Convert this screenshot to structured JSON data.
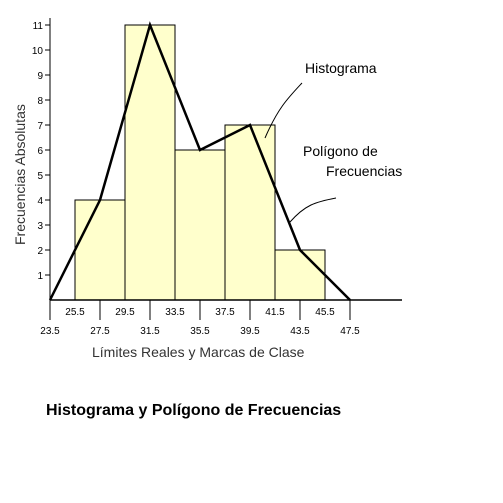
{
  "chart_data": {
    "type": "histogram",
    "title": "Histograma y Polígono de Frecuencias",
    "xlabel": "Límites Reales y Marcas de Clase",
    "ylabel": "Frecuencias Absolutas",
    "ylim": [
      0,
      11
    ],
    "yticks": [
      1,
      2,
      3,
      4,
      5,
      6,
      7,
      8,
      9,
      10,
      11
    ],
    "xlim": [
      23.5,
      47.5
    ],
    "bins": [
      {
        "from": 25.5,
        "to": 29.5,
        "mark": 27.5,
        "value": 4
      },
      {
        "from": 29.5,
        "to": 33.5,
        "mark": 31.5,
        "value": 11
      },
      {
        "from": 33.5,
        "to": 37.5,
        "mark": 35.5,
        "value": 6
      },
      {
        "from": 37.5,
        "to": 41.5,
        "mark": 39.5,
        "value": 7
      },
      {
        "from": 41.5,
        "to": 45.5,
        "mark": 43.5,
        "value": 2
      }
    ],
    "polygon": [
      {
        "x": 23.5,
        "y": 0
      },
      {
        "x": 27.5,
        "y": 4
      },
      {
        "x": 31.5,
        "y": 11
      },
      {
        "x": 35.5,
        "y": 6
      },
      {
        "x": 39.5,
        "y": 7
      },
      {
        "x": 43.5,
        "y": 2
      },
      {
        "x": 47.5,
        "y": 0
      }
    ],
    "xtick_labels_upper": [
      "25.5",
      "29.5",
      "33.5",
      "37.5",
      "41.5",
      "45.5"
    ],
    "xtick_labels_lower": [
      "23.5",
      "27.5",
      "31.5",
      "35.5",
      "39.5",
      "43.5",
      "47.5"
    ],
    "annotations": {
      "histogram": "Histograma",
      "polygon_line1": "Polígono de",
      "polygon_line2": "Frecuencias"
    },
    "colors": {
      "bar_fill": "#ffffcc",
      "stroke": "#000000"
    }
  }
}
